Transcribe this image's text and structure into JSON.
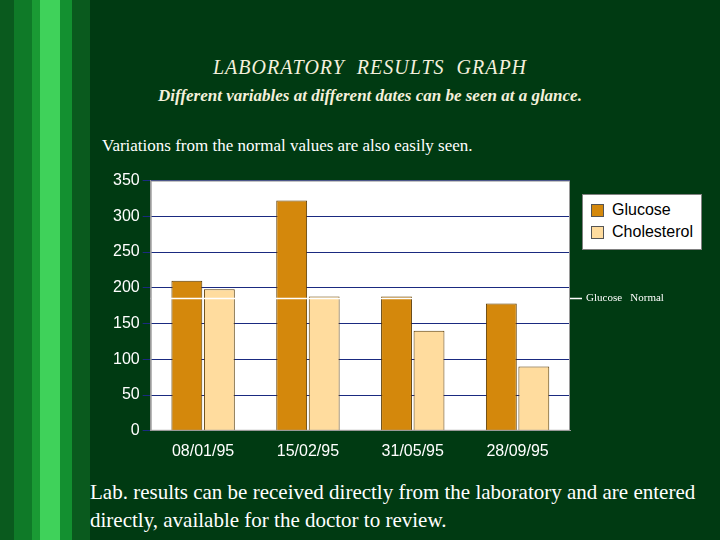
{
  "slide": {
    "heading": "LABORATORY RESULTS GRAPH",
    "subheading": "Different variables at different dates can be seen at a glance.",
    "note": "Variations from the normal values are also easily seen.",
    "footer": "Lab. results can be received directly from the laboratory and are entered directly, available for the doctor to review."
  },
  "chart_data": {
    "type": "bar",
    "categories": [
      "08/01/95",
      "15/02/95",
      "31/05/95",
      "28/09/95"
    ],
    "series": [
      {
        "name": "Glucose",
        "color": "#d4880c",
        "values": [
          210,
          322,
          188,
          178
        ]
      },
      {
        "name": "Cholesterol",
        "color": "#ffdc9e",
        "values": [
          198,
          188,
          140,
          90
        ]
      }
    ],
    "ylim": [
      0,
      350
    ],
    "yticks": [
      0,
      50,
      100,
      150,
      200,
      250,
      300,
      350
    ],
    "grid": true,
    "legend": "right",
    "annotations": [
      {
        "text": "Glucose   Normal",
        "y": 185
      }
    ]
  }
}
